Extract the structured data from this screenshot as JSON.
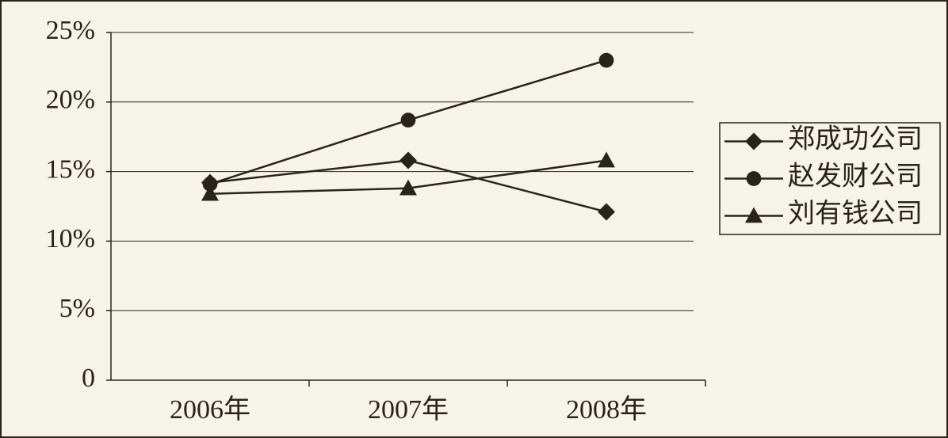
{
  "chart_data": {
    "type": "line",
    "categories": [
      "2006年",
      "2007年",
      "2008年"
    ],
    "series": [
      {
        "name": "郑成功公司",
        "color": "#2a2418",
        "marker": "diamond",
        "values": [
          14.2,
          15.8,
          12.1
        ]
      },
      {
        "name": "赵发财公司",
        "color": "#2a2418",
        "marker": "circle",
        "values": [
          14.1,
          18.7,
          23.0
        ]
      },
      {
        "name": "刘有钱公司",
        "color": "#2a2418",
        "marker": "triangle",
        "values": [
          13.4,
          13.8,
          15.8
        ]
      }
    ],
    "ylim": [
      0,
      25
    ],
    "yticks": [
      0,
      {
        "value": 5,
        "label": "5%"
      },
      {
        "value": 10,
        "label": "10%"
      },
      {
        "value": 15,
        "label": "15%"
      },
      {
        "value": 20,
        "label": "20%"
      },
      {
        "value": 25,
        "label": "25%"
      }
    ],
    "grid": true,
    "legend": "right"
  }
}
